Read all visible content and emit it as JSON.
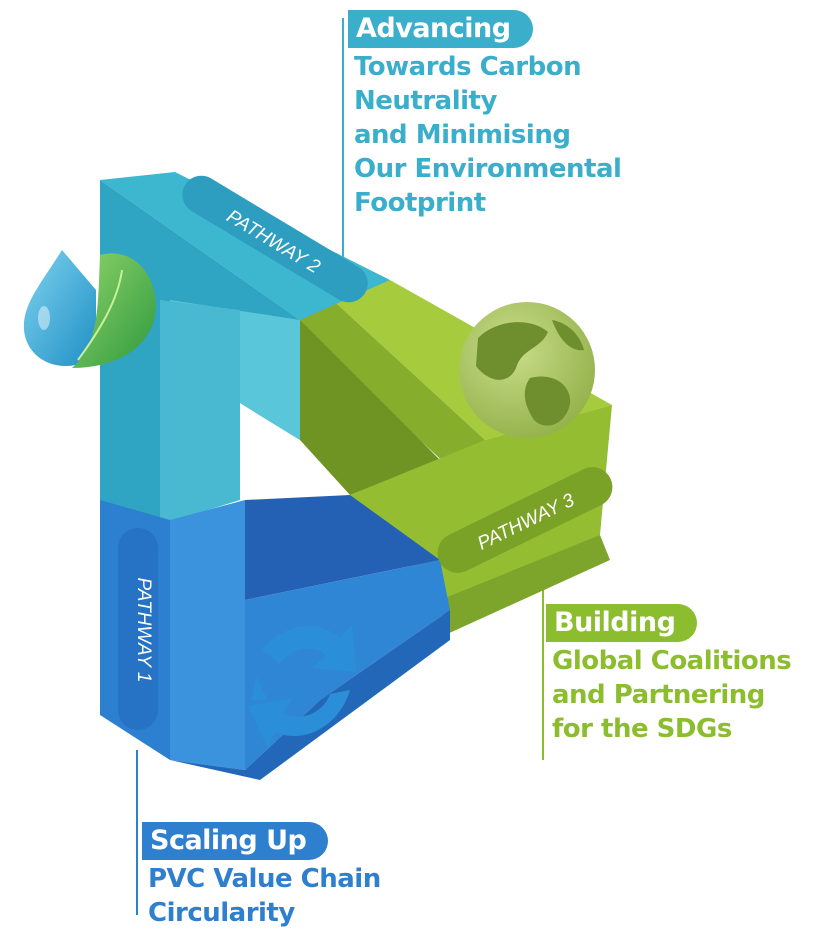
{
  "pathways": [
    {
      "label": "PATHWAY 1",
      "heading": "Scaling Up",
      "lines": [
        "PVC Value Chain",
        "Circularity"
      ],
      "color": "#2f7fcf",
      "icon": "recycle-arrows-icon"
    },
    {
      "label": "PATHWAY 2",
      "heading": "Advancing",
      "lines": [
        "Towards Carbon",
        "Neutrality",
        "and Minimising",
        "Our Environmental",
        "Footprint"
      ],
      "color": "#3aaecb",
      "icon": "water-drop-leaf-icon"
    },
    {
      "label": "PATHWAY 3",
      "heading": "Building",
      "lines": [
        "Global Coalitions",
        "and Partnering",
        "for the SDGs"
      ],
      "color": "#8cbd2f",
      "icon": "globe-icon"
    }
  ]
}
